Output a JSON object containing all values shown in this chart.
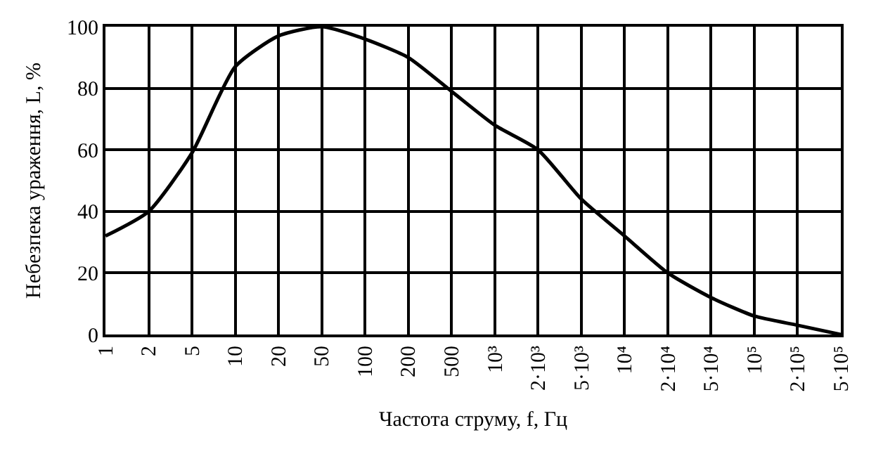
{
  "chart_data": {
    "type": "line",
    "xlabel": "Частота струму, f, Гц",
    "ylabel": "Небезпека ураження, L, %",
    "categories": [
      "1",
      "2",
      "5",
      "10",
      "20",
      "50",
      "100",
      "200",
      "500",
      "10³",
      "2·10³",
      "5·10³",
      "10⁴",
      "2·10⁴",
      "5·10⁴",
      "10⁵",
      "2·10⁵",
      "5·10⁵"
    ],
    "series": [
      {
        "color": "#000000",
        "values": [
          32,
          40,
          59,
          87,
          97,
          100,
          96,
          90,
          79,
          68,
          60,
          44,
          32,
          20,
          12,
          6,
          3,
          0
        ]
      }
    ],
    "ylim": [
      0,
      100
    ],
    "yticks": [
      0,
      20,
      40,
      60,
      80,
      100
    ],
    "grid": true,
    "marker": "none",
    "line_style": "solid"
  }
}
